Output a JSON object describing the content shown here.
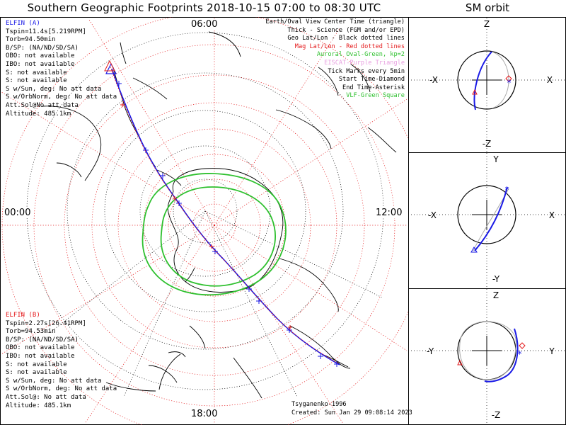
{
  "header": {
    "title": "Southern Geographic Footprints 2018-10-15 07:00 to 08:30 UTC",
    "right_title": "SM orbit"
  },
  "clock": {
    "top": "06:00",
    "left": "00:00",
    "right": "12:00",
    "bottom": "18:00"
  },
  "elfin_a": {
    "name": "ELFIN (A)",
    "lines": [
      "Tspin=11.4s[5.219RPM]",
      "Torb=94.50min",
      "B/SP: (NA/ND/SD/SA)",
      "OBO: not available",
      "IBO: not available",
      "S: not available",
      "S: not available",
      "S w/Sun, deg: No att data",
      "S w/OrbNorm, deg: No att data",
      "Att.Sol@No att data",
      "Altitude: 485.1km"
    ]
  },
  "elfin_b": {
    "name": "ELFIN (B)",
    "lines": [
      "Tspin=2.27s[26.41RPM]",
      "Torb=94.53min",
      "B/SP: (NA/ND/SD/SA)",
      "OBO: not available",
      "IBO: not available",
      "S: not available",
      "S: not available",
      "S w/Sun, deg: No att data",
      "S w/OrbNorm, deg: No att data",
      "Att.Sol@: No att data",
      "Altitude: 485.1km"
    ]
  },
  "legend": [
    {
      "text": "Earth/Oval View Center Time (triangle)",
      "color": "#000000"
    },
    {
      "text": "Thick - Science (FGM and/or EPD)",
      "color": "#000000"
    },
    {
      "text": "Geo Lat/Lon - Black dotted lines",
      "color": "#000000"
    },
    {
      "text": "Mag Lat/Lon - Red dotted lines",
      "color": "#e41a1c"
    },
    {
      "text": "Auroral Oval-Green, kp=2",
      "color": "#2ec02e"
    },
    {
      "text": "EISCAT-Purple Triangle",
      "color": "#e8a0e0"
    },
    {
      "text": "Tick Marks every 5min",
      "color": "#000000"
    },
    {
      "text": "Start Time-Diamond",
      "color": "#000000"
    },
    {
      "text": "End Time-Asterisk",
      "color": "#000000"
    },
    {
      "text": "VLF-Green Square",
      "color": "#2ec02e"
    }
  ],
  "credits": {
    "author": "Tsyganenko-1996",
    "created": "Created: Sun Jan 29 09:08:14 2023"
  },
  "sm_panels": [
    {
      "top": "Z",
      "bottom": "-Z",
      "left": "-X",
      "right": "X"
    },
    {
      "top": "Y",
      "bottom": "-Y",
      "left": "-X",
      "right": "X"
    },
    {
      "top": "Z",
      "bottom": "-Z",
      "left": "-Y",
      "right": "Y"
    }
  ],
  "colors": {
    "elfin_a": "#1a1ae6",
    "elfin_b": "#e41a1c",
    "auroral_oval": "#2ec02e",
    "mag_grid": "#e41a1c",
    "geo_grid": "#000000"
  }
}
